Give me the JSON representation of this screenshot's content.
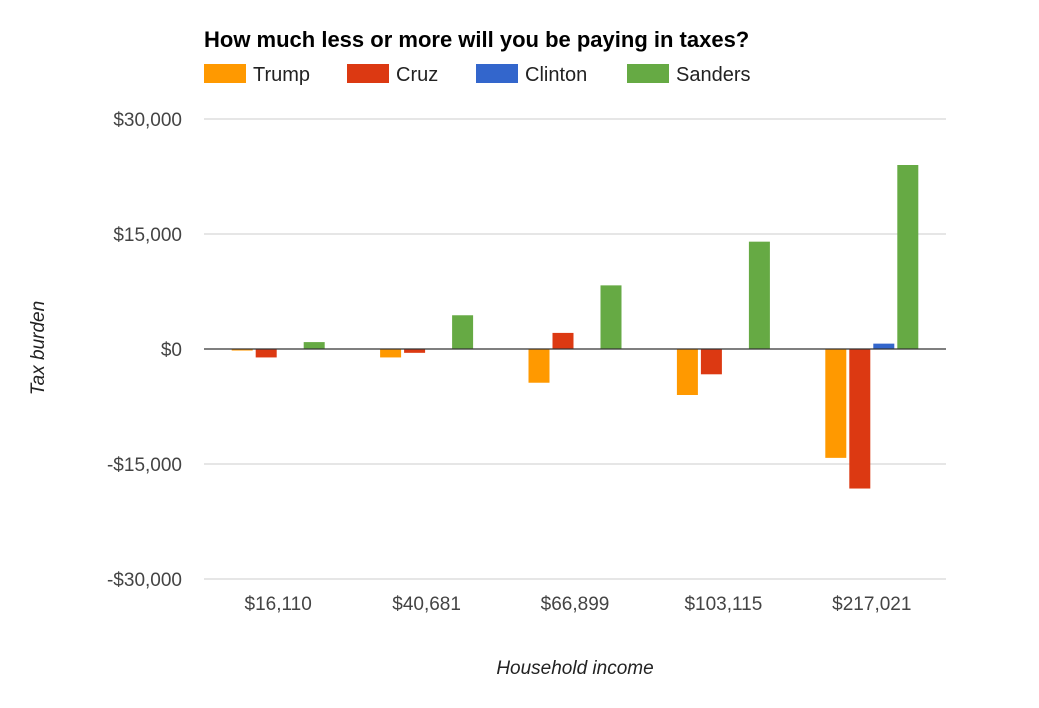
{
  "chart_data": {
    "type": "bar",
    "title": "How much less or more will you be paying in taxes?",
    "xlabel": "Household income",
    "ylabel": "Tax burden",
    "categories": [
      "$16,110",
      "$40,681",
      "$66,899",
      "$103,115",
      "$217,021"
    ],
    "series": [
      {
        "name": "Trump",
        "color": "#ff9900",
        "values": [
          -200,
          -1100,
          -4400,
          -6000,
          -14200
        ]
      },
      {
        "name": "Cruz",
        "color": "#dc3912",
        "values": [
          -1100,
          -500,
          2100,
          -3300,
          -18200
        ]
      },
      {
        "name": "Clinton",
        "color": "#3366cc",
        "values": [
          0,
          0,
          0,
          0,
          700
        ]
      },
      {
        "name": "Sanders",
        "color": "#66aa44",
        "values": [
          900,
          4400,
          8300,
          14000,
          24000
        ]
      }
    ],
    "ylim": [
      -30000,
      30000
    ],
    "yticks": [
      30000,
      15000,
      0,
      -15000,
      -30000
    ],
    "ytick_labels": [
      "$30,000",
      "$15,000",
      "$0",
      "-$15,000",
      "-$30,000"
    ],
    "grid": true,
    "legend_position": "top-left"
  }
}
